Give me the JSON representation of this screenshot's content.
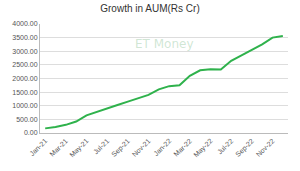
{
  "chart_data": {
    "type": "line",
    "title": "Growth in AUM(Rs Cr)",
    "categories": [
      "Jan-21",
      null,
      "Mar-21",
      null,
      "May-21",
      null,
      "Jul-21",
      null,
      "Sep-21",
      null,
      "Nov-21",
      null,
      "Jan-22",
      null,
      "Mar-22",
      null,
      "May-22",
      null,
      "Jul-22",
      null,
      "Sep-22",
      null,
      "Nov-22",
      null
    ],
    "values": [
      170,
      220,
      300,
      420,
      650,
      780,
      920,
      1030,
      1150,
      1270,
      1400,
      1600,
      1720,
      1750,
      2100,
      2300,
      2340,
      2330,
      2650,
      2850,
      3050,
      3250,
      3500,
      3560
    ],
    "color": "#2fb24c",
    "ylim": [
      0,
      4000
    ],
    "yticks": [
      {
        "value": 0,
        "label": "0.00"
      },
      {
        "value": 500,
        "label": "500.00"
      },
      {
        "value": 1000,
        "label": "1000.00"
      },
      {
        "value": 1500,
        "label": "1500.00"
      },
      {
        "value": 2000,
        "label": "2000.00"
      },
      {
        "value": 2500,
        "label": "2500.00"
      },
      {
        "value": 3000,
        "label": "3000.00"
      },
      {
        "value": 3500,
        "label": "3500.00"
      },
      {
        "value": 4000,
        "label": "4000.00"
      }
    ],
    "grid": true,
    "annotations": [
      "ET Money"
    ]
  }
}
